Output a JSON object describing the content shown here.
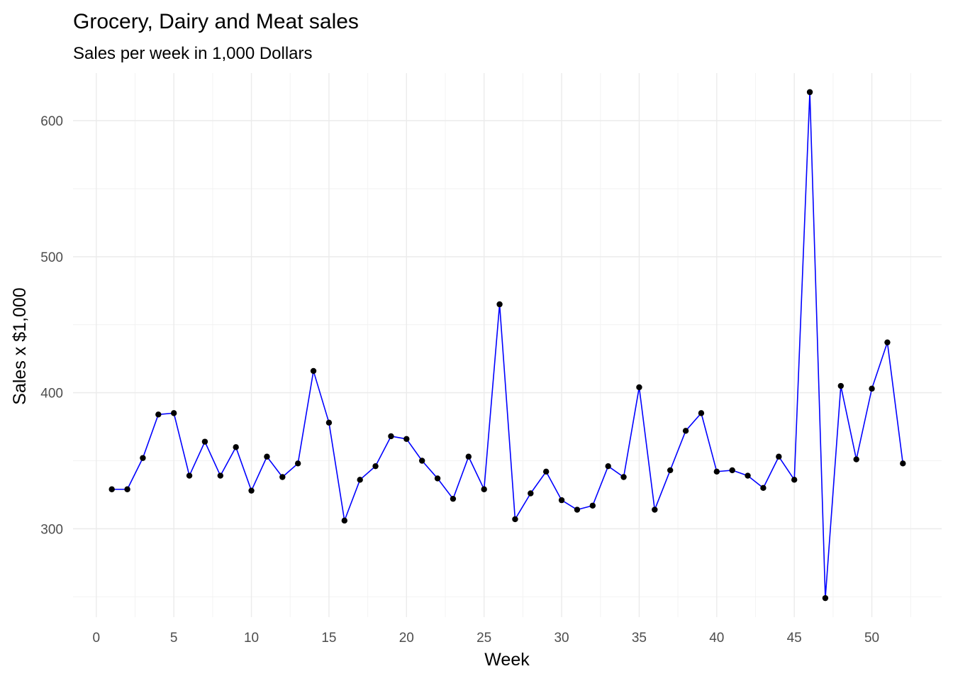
{
  "chart_data": {
    "type": "line",
    "title": "Grocery, Dairy and Meat sales",
    "subtitle": "Sales per week in 1,000 Dollars",
    "xlabel": "Week",
    "ylabel": "Sales x $1,000",
    "xlim": [
      -1.5,
      54.5
    ],
    "ylim": [
      235,
      635
    ],
    "x_ticks": [
      0,
      5,
      10,
      15,
      20,
      25,
      30,
      35,
      40,
      45,
      50
    ],
    "y_ticks": [
      300,
      400,
      500,
      600
    ],
    "grid": true,
    "legend": "none",
    "colors": {
      "line": "#0000ff",
      "point": "#000000"
    },
    "x": [
      1,
      2,
      3,
      4,
      5,
      6,
      7,
      8,
      9,
      10,
      11,
      12,
      13,
      14,
      15,
      16,
      17,
      18,
      19,
      20,
      21,
      22,
      23,
      24,
      25,
      26,
      27,
      28,
      29,
      30,
      31,
      32,
      33,
      34,
      35,
      36,
      37,
      38,
      39,
      40,
      41,
      42,
      43,
      44,
      45,
      46,
      47,
      48,
      49,
      50,
      51,
      52
    ],
    "values": [
      329,
      329,
      352,
      384,
      385,
      339,
      364,
      339,
      360,
      328,
      353,
      338,
      348,
      416,
      378,
      306,
      336,
      346,
      368,
      366,
      350,
      337,
      322,
      353,
      329,
      465,
      307,
      326,
      342,
      321,
      314,
      317,
      346,
      338,
      404,
      314,
      343,
      372,
      385,
      342,
      343,
      339,
      330,
      353,
      336,
      621,
      249,
      405,
      351,
      403,
      437,
      348
    ]
  }
}
